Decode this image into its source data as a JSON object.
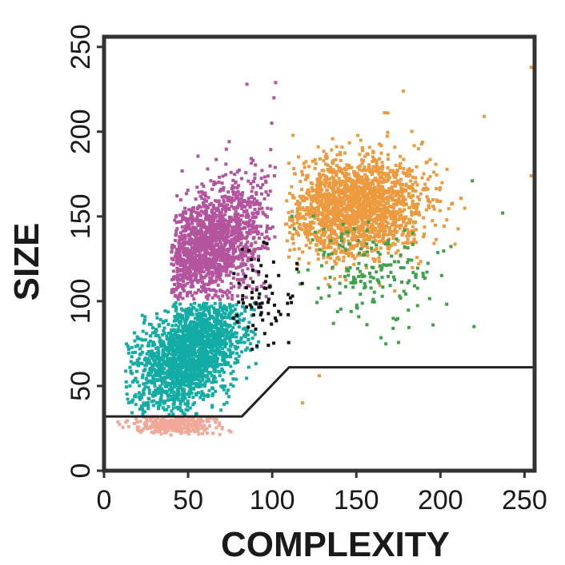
{
  "chart_data": {
    "type": "scatter",
    "title": "",
    "xlabel": "COMPLEXITY",
    "ylabel": "SIZE",
    "xlim": [
      0,
      256
    ],
    "ylim": [
      0,
      256
    ],
    "x_ticks": [
      0,
      50,
      100,
      150,
      200,
      250
    ],
    "y_ticks": [
      0,
      50,
      100,
      150,
      200,
      250
    ],
    "x_tick_labels": [
      "0",
      "50",
      "100",
      "150",
      "200",
      "250"
    ],
    "y_tick_labels": [
      "0",
      "50",
      "100",
      "150",
      "200",
      "250"
    ],
    "grid": false,
    "legend": "none",
    "colors": {
      "purple": "#b5549e",
      "teal": "#12aca5",
      "orange": "#ed9a3f",
      "green": "#3ea24b",
      "black": "#111111",
      "pink": "#f2a898",
      "gate_line": "#222222",
      "frame": "#333333"
    },
    "series": [
      {
        "color_key": "purple",
        "count": 1500,
        "cx": 62,
        "cy": 132,
        "sx": 17,
        "sy": 20,
        "rho": 0.5,
        "y_min": 101,
        "y_max": 225,
        "x_min": 40,
        "x_max": 102
      },
      {
        "color_key": "teal",
        "count": 1900,
        "cx": 52,
        "cy": 70,
        "sx": 16,
        "sy": 17,
        "rho": 0.45,
        "y_min": 33,
        "y_max": 99,
        "x_min": 12,
        "x_max": 92
      },
      {
        "color_key": "orange",
        "count": 1800,
        "cx": 150,
        "cy": 156,
        "sx": 21,
        "sy": 15,
        "rho": 0.1,
        "y_min": 105,
        "y_max": 222,
        "x_min": 108,
        "x_max": 215
      },
      {
        "color_key": "green",
        "count": 170,
        "cx": 160,
        "cy": 118,
        "sx": 24,
        "sy": 16,
        "rho": -0.2,
        "y_min": 72,
        "y_max": 175,
        "x_min": 110,
        "x_max": 235
      },
      {
        "color_key": "black",
        "count": 75,
        "cx": 93,
        "cy": 100,
        "sx": 13,
        "sy": 17,
        "rho": -0.1,
        "y_min": 67,
        "y_max": 138,
        "x_min": 72,
        "x_max": 128
      },
      {
        "color_key": "pink",
        "count": 260,
        "cx": 40,
        "cy": 27,
        "sx": 14,
        "sy": 3,
        "rho": 0,
        "y_min": 21,
        "y_max": 32,
        "x_min": 8,
        "x_max": 78
      }
    ],
    "gate": {
      "x": [
        0,
        82,
        110,
        256
      ],
      "y": [
        32,
        32,
        61,
        61
      ]
    },
    "outliers": [
      {
        "x": 102,
        "y": 229,
        "color_key": "purple"
      },
      {
        "x": 101,
        "y": 220,
        "color_key": "purple"
      },
      {
        "x": 85,
        "y": 228,
        "color_key": "purple"
      },
      {
        "x": 178,
        "y": 224,
        "color_key": "orange"
      },
      {
        "x": 226,
        "y": 209,
        "color_key": "orange"
      },
      {
        "x": 254,
        "y": 238,
        "color_key": "orange"
      },
      {
        "x": 254,
        "y": 174,
        "color_key": "orange"
      },
      {
        "x": 237,
        "y": 152,
        "color_key": "green"
      },
      {
        "x": 219,
        "y": 171,
        "color_key": "green"
      },
      {
        "x": 220,
        "y": 85,
        "color_key": "green"
      },
      {
        "x": 128,
        "y": 56,
        "color_key": "orange"
      },
      {
        "x": 118,
        "y": 40,
        "color_key": "orange"
      }
    ]
  }
}
